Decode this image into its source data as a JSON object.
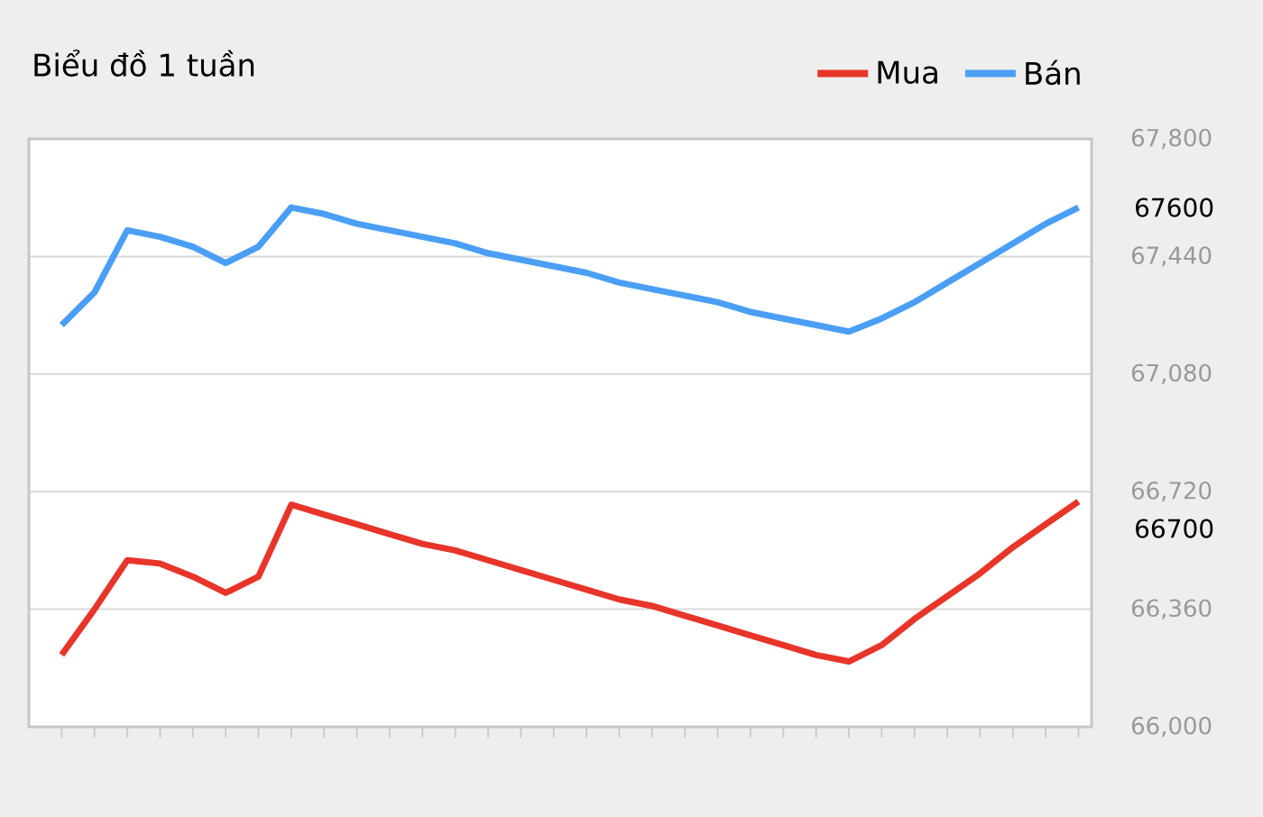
{
  "chart_data": {
    "type": "line",
    "title": "Biểu đồ 1 tuần",
    "categories": [
      null,
      null,
      null,
      null,
      null,
      null,
      null,
      null,
      null,
      null,
      null,
      null,
      null,
      null,
      null,
      null,
      null,
      null,
      null,
      null,
      null,
      null,
      null,
      null,
      null,
      null,
      null,
      null,
      null,
      null,
      null,
      null
    ],
    "series": [
      {
        "name": "Mua",
        "color": "#e8352a",
        "values": [
          66220,
          66360,
          66510,
          66500,
          66460,
          66410,
          66460,
          66680,
          66650,
          66620,
          66590,
          66560,
          66540,
          66510,
          66480,
          66450,
          66420,
          66390,
          66370,
          66340,
          66310,
          66280,
          66250,
          66220,
          66200,
          66250,
          66330,
          66400,
          66470,
          66550,
          66620,
          66690
        ]
      },
      {
        "name": "Bán",
        "color": "#4a9ff5",
        "values": [
          67230,
          67330,
          67520,
          67500,
          67470,
          67420,
          67470,
          67590,
          67570,
          67540,
          67520,
          67500,
          67480,
          67450,
          67430,
          67410,
          67390,
          67360,
          67340,
          67320,
          67300,
          67270,
          67250,
          67230,
          67210,
          67250,
          67300,
          67360,
          67420,
          67480,
          67540,
          67590
        ]
      }
    ],
    "ylim": [
      66000,
      67800
    ],
    "yticks": [
      {
        "value": 66000,
        "label": "66,000"
      },
      {
        "value": 66360,
        "label": "66,360"
      },
      {
        "value": 66720,
        "label": "66,720"
      },
      {
        "value": 67080,
        "label": "67,080"
      },
      {
        "value": 67440,
        "label": "67,440"
      },
      {
        "value": 67800,
        "label": "67,800"
      }
    ],
    "grid": "y",
    "legend": "top right",
    "annotations": [
      "67600",
      "66700"
    ]
  }
}
